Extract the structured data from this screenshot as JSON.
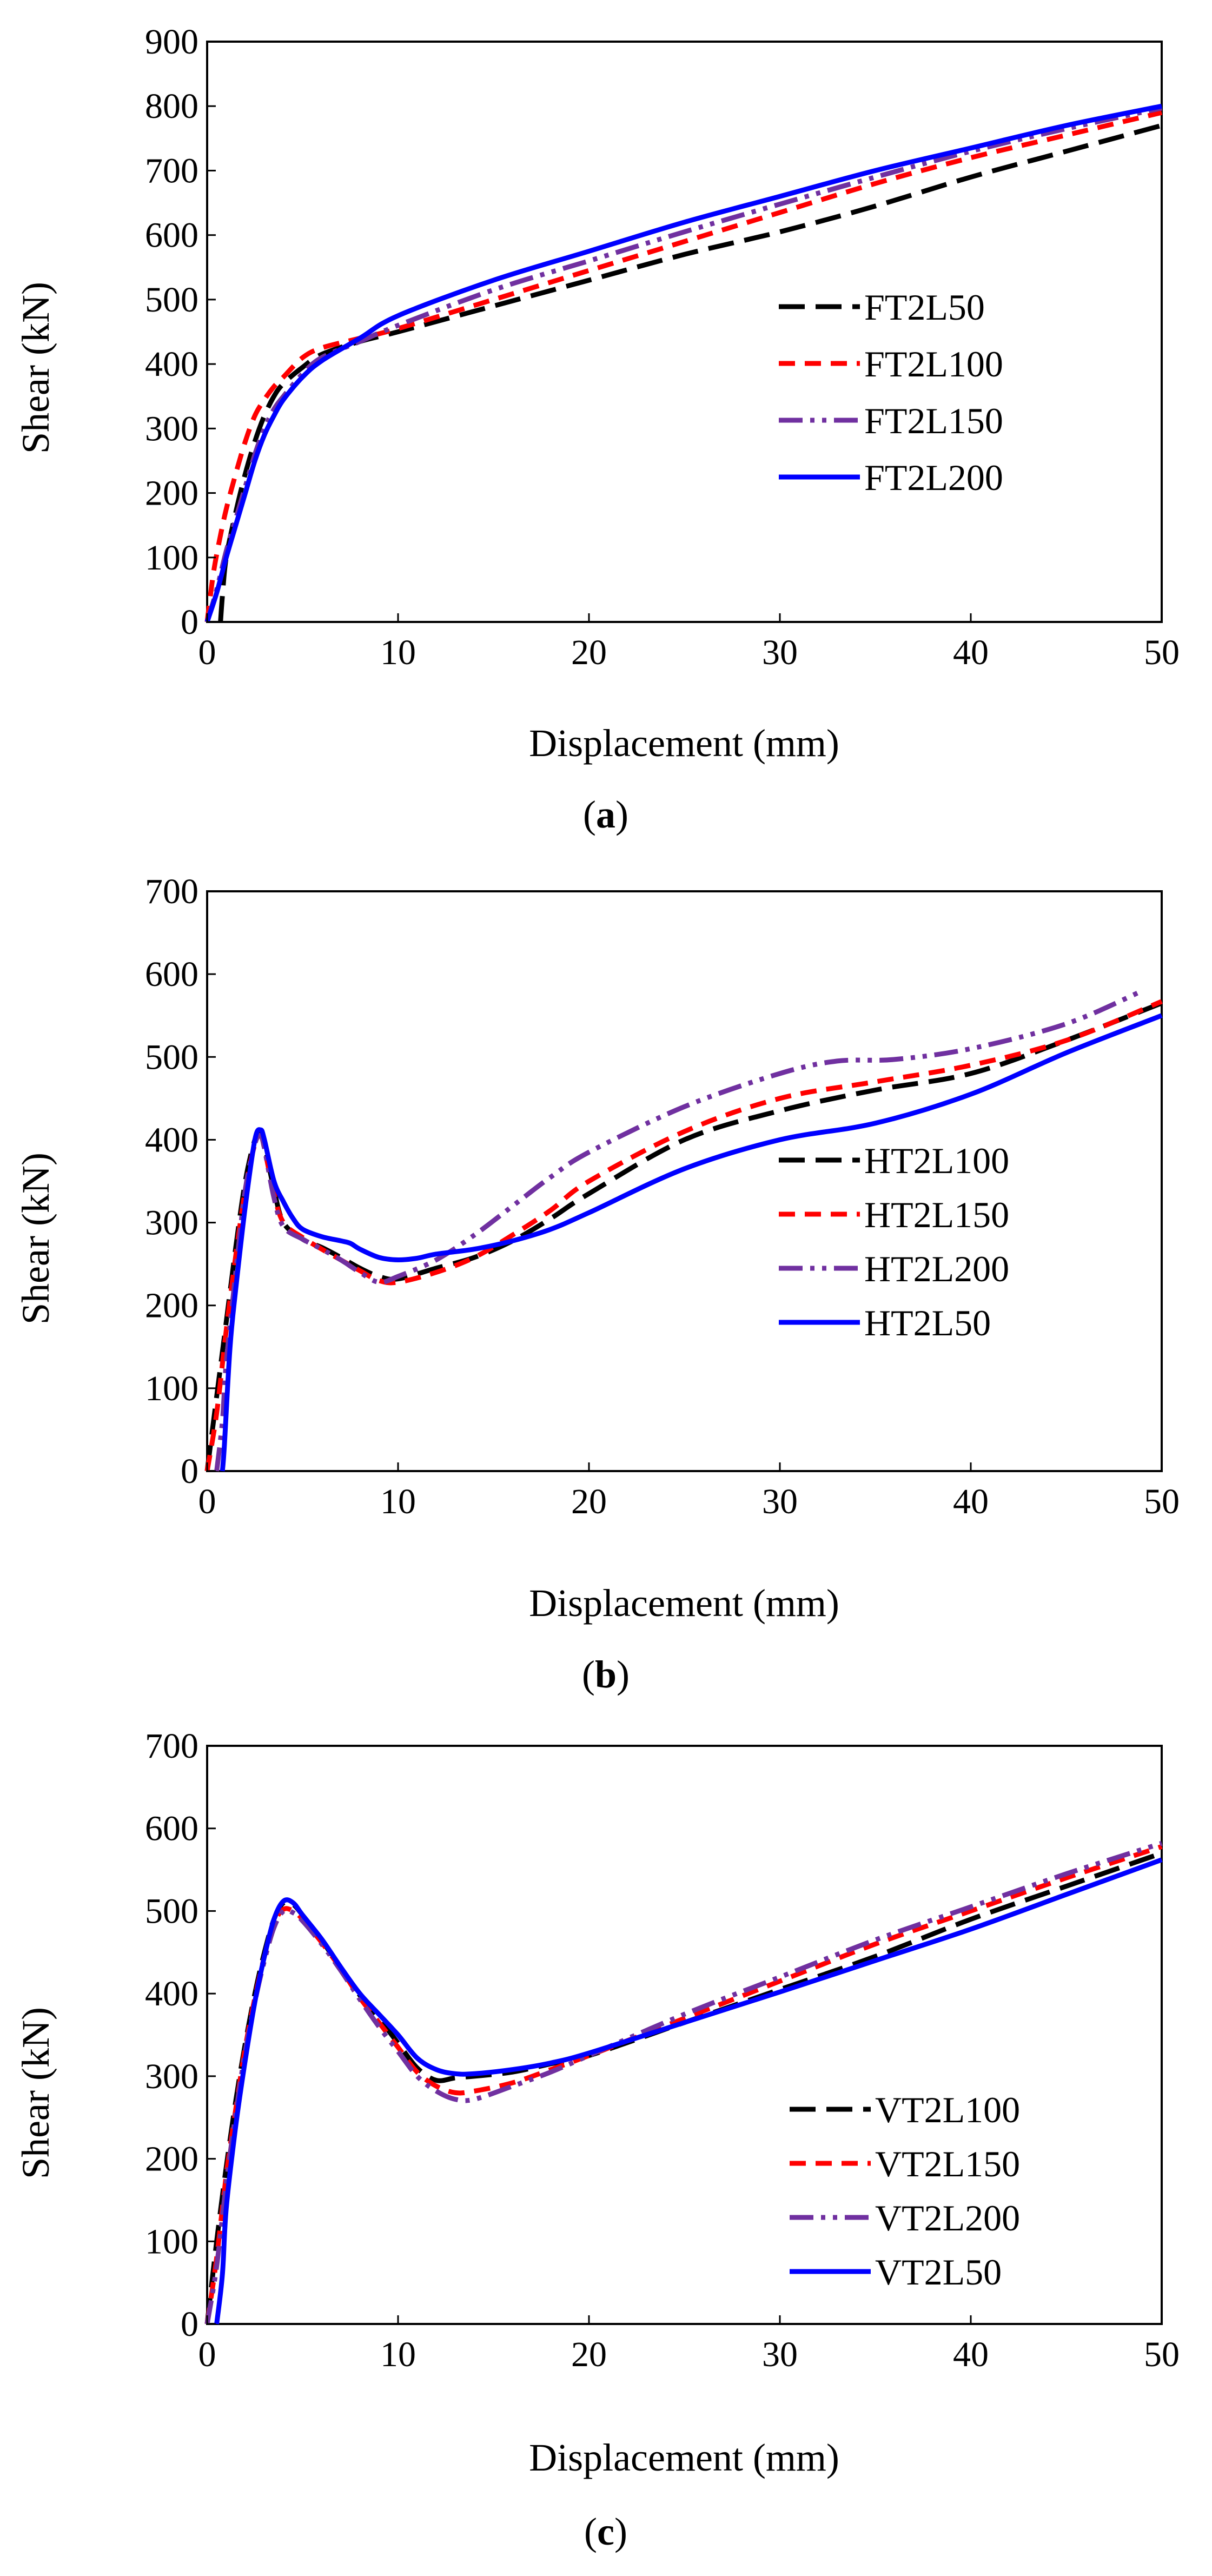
{
  "chart_data": [
    {
      "panel": "a",
      "caption_letter": "a",
      "type": "line",
      "xlabel": "Displacement (mm)",
      "ylabel": "Shear (kN)",
      "xlim": [
        0,
        50
      ],
      "ylim": [
        0,
        900
      ],
      "xticks": [
        0,
        10,
        20,
        30,
        40,
        50
      ],
      "yticks": [
        0,
        100,
        200,
        300,
        400,
        500,
        600,
        700,
        800,
        900
      ],
      "legend_position": "right-middle",
      "series": [
        {
          "name": "FT2L50",
          "color": "#000000",
          "dash": "long-dash",
          "x": [
            0.7,
            0.8,
            1.0,
            1.5,
            2,
            2.5,
            3,
            3.5,
            4,
            5,
            6,
            8,
            10,
            15,
            20,
            25,
            30,
            35,
            40,
            45,
            50
          ],
          "y": [
            0,
            40,
            100,
            170,
            230,
            280,
            320,
            350,
            370,
            395,
            415,
            435,
            450,
            490,
            530,
            570,
            605,
            645,
            690,
            730,
            770
          ]
        },
        {
          "name": "FT2L100",
          "color": "#ff0000",
          "dash": "dash",
          "x": [
            0,
            0.3,
            0.6,
            1,
            1.5,
            2,
            2.5,
            3,
            3.5,
            4,
            5,
            6,
            8,
            10,
            15,
            20,
            25,
            30,
            35,
            40,
            45,
            50
          ],
          "y": [
            0,
            70,
            120,
            175,
            230,
            280,
            320,
            345,
            365,
            380,
            410,
            425,
            440,
            455,
            500,
            545,
            590,
            635,
            680,
            720,
            755,
            790
          ]
        },
        {
          "name": "FT2L150",
          "color": "#7030a0",
          "dash": "dash-dot-dot",
          "x": [
            0,
            0.5,
            1,
            1.5,
            2,
            2.5,
            3,
            3.5,
            4,
            5,
            6,
            8,
            10,
            15,
            20,
            25,
            30,
            35,
            40,
            45,
            50
          ],
          "y": [
            0,
            50,
            110,
            160,
            210,
            260,
            300,
            330,
            350,
            385,
            410,
            435,
            460,
            515,
            560,
            605,
            648,
            690,
            730,
            765,
            797
          ]
        },
        {
          "name": "FT2L200",
          "color": "#0000ff",
          "dash": "solid",
          "x": [
            0,
            0.5,
            1,
            1.5,
            2,
            2.5,
            3,
            3.5,
            4,
            5,
            6,
            8,
            10,
            15,
            20,
            25,
            30,
            35,
            40,
            45,
            50
          ],
          "y": [
            0,
            45,
            100,
            150,
            200,
            250,
            290,
            320,
            345,
            380,
            405,
            440,
            475,
            530,
            575,
            620,
            660,
            700,
            735,
            770,
            800
          ]
        }
      ]
    },
    {
      "panel": "b",
      "caption_letter": "b",
      "type": "line",
      "xlabel": "Displacement (mm)",
      "ylabel": "Shear (kN)",
      "xlim": [
        0,
        50
      ],
      "ylim": [
        0,
        700
      ],
      "xticks": [
        0,
        10,
        20,
        30,
        40,
        50
      ],
      "yticks": [
        0,
        100,
        200,
        300,
        400,
        500,
        600,
        700
      ],
      "legend_position": "right-middle",
      "series": [
        {
          "name": "HT2L100",
          "color": "#000000",
          "dash": "long-dash",
          "x": [
            0,
            0.5,
            1,
            1.5,
            2,
            2.5,
            2.8,
            3,
            3.5,
            4,
            5,
            6,
            7,
            8,
            9,
            10,
            12,
            14,
            16,
            18,
            20,
            25,
            30,
            35,
            40,
            45,
            50
          ],
          "y": [
            0,
            90,
            180,
            270,
            350,
            400,
            408,
            395,
            340,
            300,
            280,
            270,
            258,
            245,
            235,
            232,
            245,
            258,
            278,
            305,
            335,
            400,
            435,
            460,
            480,
            520,
            565
          ]
        },
        {
          "name": "HT2L150",
          "color": "#ff0000",
          "dash": "dash",
          "x": [
            0,
            0.5,
            1,
            1.5,
            2,
            2.5,
            2.8,
            3,
            3.5,
            4,
            5,
            6,
            7,
            8,
            9,
            10,
            12,
            14,
            16,
            18,
            20,
            25,
            30,
            35,
            40,
            45,
            50
          ],
          "y": [
            0,
            70,
            170,
            260,
            340,
            395,
            405,
            390,
            335,
            300,
            282,
            268,
            255,
            242,
            230,
            228,
            240,
            258,
            285,
            315,
            350,
            410,
            450,
            470,
            490,
            520,
            567
          ]
        },
        {
          "name": "HT2L200",
          "color": "#7030a0",
          "dash": "dash-dot-dot",
          "x": [
            0.5,
            0.8,
            1,
            1.5,
            2,
            2.5,
            2.8,
            3,
            3.5,
            4,
            5,
            6,
            7,
            8,
            9,
            10,
            12,
            14,
            16,
            18,
            20,
            25,
            30,
            33,
            36,
            40,
            45,
            49
          ],
          "y": [
            0,
            60,
            130,
            240,
            340,
            395,
            405,
            390,
            330,
            295,
            280,
            268,
            255,
            240,
            228,
            235,
            255,
            285,
            320,
            355,
            385,
            440,
            480,
            495,
            497,
            510,
            540,
            580
          ]
        },
        {
          "name": "HT2L50",
          "color": "#0000ff",
          "dash": "solid",
          "x": [
            0.8,
            0.9,
            1.2,
            1.5,
            2,
            2.5,
            2.8,
            3,
            3.5,
            4,
            4.5,
            5,
            6,
            7,
            7.5,
            8,
            9,
            10,
            11,
            12,
            14,
            16,
            18,
            20,
            25,
            30,
            35,
            40,
            45,
            50
          ],
          "y": [
            0,
            30,
            150,
            220,
            320,
            400,
            412,
            400,
            350,
            325,
            305,
            292,
            283,
            278,
            275,
            268,
            258,
            255,
            257,
            262,
            268,
            278,
            292,
            312,
            365,
            400,
            420,
            455,
            505,
            550
          ]
        }
      ]
    },
    {
      "panel": "c",
      "caption_letter": "c",
      "type": "line",
      "xlabel": "Displacement (mm)",
      "ylabel": "Shear (kN)",
      "xlim": [
        0,
        50
      ],
      "ylim": [
        0,
        700
      ],
      "xticks": [
        0,
        10,
        20,
        30,
        40,
        50
      ],
      "yticks": [
        0,
        100,
        200,
        300,
        400,
        500,
        600,
        700
      ],
      "legend_position": "bottom-right",
      "series": [
        {
          "name": "VT2L100",
          "color": "#000000",
          "dash": "long-dash",
          "x": [
            0,
            0.5,
            1,
            1.5,
            2,
            2.5,
            3,
            3.5,
            4,
            4.5,
            5,
            6,
            7,
            8,
            9,
            10,
            11,
            12,
            13,
            14,
            16,
            18,
            20,
            25,
            30,
            35,
            40,
            45,
            50
          ],
          "y": [
            0,
            100,
            190,
            270,
            340,
            400,
            450,
            490,
            510,
            508,
            495,
            465,
            430,
            398,
            370,
            340,
            310,
            295,
            298,
            300,
            305,
            315,
            325,
            365,
            405,
            445,
            490,
            530,
            570
          ]
        },
        {
          "name": "VT2L150",
          "color": "#ff0000",
          "dash": "dash",
          "x": [
            0,
            0.5,
            1,
            1.5,
            2,
            2.5,
            3,
            3.5,
            4,
            4.5,
            5,
            6,
            7,
            8,
            9,
            10,
            11,
            12,
            13,
            14,
            16,
            18,
            20,
            25,
            30,
            35,
            40,
            45,
            50
          ],
          "y": [
            0,
            80,
            180,
            260,
            335,
            395,
            445,
            485,
            502,
            500,
            490,
            462,
            430,
            395,
            365,
            335,
            305,
            288,
            280,
            282,
            292,
            308,
            325,
            370,
            415,
            460,
            500,
            540,
            578
          ]
        },
        {
          "name": "VT2L200",
          "color": "#7030a0",
          "dash": "dash-dot-dot",
          "x": [
            0,
            0.5,
            1,
            1.5,
            2,
            2.5,
            3,
            3.5,
            4,
            4.5,
            5,
            6,
            7,
            8,
            9,
            10,
            11,
            12,
            13,
            14,
            16,
            18,
            20,
            25,
            30,
            35,
            40,
            45,
            50
          ],
          "y": [
            0,
            70,
            170,
            255,
            330,
            390,
            440,
            480,
            500,
            498,
            488,
            460,
            428,
            393,
            360,
            330,
            300,
            282,
            272,
            272,
            288,
            305,
            325,
            375,
            420,
            465,
            505,
            545,
            582
          ]
        },
        {
          "name": "VT2L50",
          "color": "#0000ff",
          "dash": "solid",
          "x": [
            0.5,
            0.8,
            1,
            1.5,
            2,
            2.5,
            3,
            3.5,
            4,
            4.5,
            5,
            6,
            7,
            8,
            9,
            10,
            11,
            12,
            13,
            14,
            16,
            18,
            20,
            25,
            30,
            35,
            40,
            45,
            50
          ],
          "y": [
            0,
            60,
            140,
            240,
            320,
            390,
            445,
            490,
            512,
            510,
            495,
            466,
            432,
            400,
            375,
            350,
            322,
            308,
            303,
            303,
            308,
            316,
            328,
            365,
            402,
            440,
            478,
            520,
            562
          ]
        }
      ]
    }
  ]
}
